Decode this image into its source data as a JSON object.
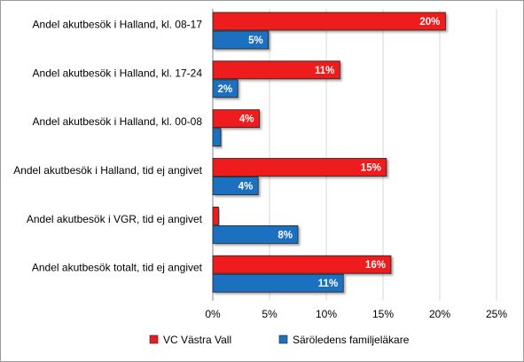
{
  "chart_data": {
    "type": "bar",
    "orientation": "horizontal",
    "categories": [
      "Andel akutbesök i Halland, kl. 08-17",
      "Andel akutbesök i Halland, kl. 17-24",
      "Andel akutbesök i Halland, kl. 00-08",
      "Andel akutbesök i Halland, tid ej angivet",
      "Andel akutbesök i VGR, tid ej angivet",
      "Andel akutbesök totalt, tid ej angivet"
    ],
    "series": [
      {
        "name": "VC Västra Vall",
        "color": "#ee1c1c",
        "values": [
          0.205,
          0.112,
          0.041,
          0.153,
          0.005,
          0.157
        ],
        "labels": [
          "20%",
          "11%",
          "4%",
          "15%",
          "",
          "16%"
        ]
      },
      {
        "name": "Säröledens familjeläkare",
        "color": "#1e6fc0",
        "values": [
          0.049,
          0.022,
          0.007,
          0.04,
          0.075,
          0.115
        ],
        "labels": [
          "5%",
          "2%",
          "",
          "4%",
          "8%",
          "11%"
        ]
      }
    ],
    "xlim": [
      0,
      0.25
    ],
    "xticks": [
      0,
      0.05,
      0.1,
      0.15,
      0.2,
      0.25
    ],
    "xtick_labels": [
      "0%",
      "5%",
      "10%",
      "15%",
      "20%",
      "25%"
    ],
    "grid": "vertical",
    "legend": "bottom"
  }
}
